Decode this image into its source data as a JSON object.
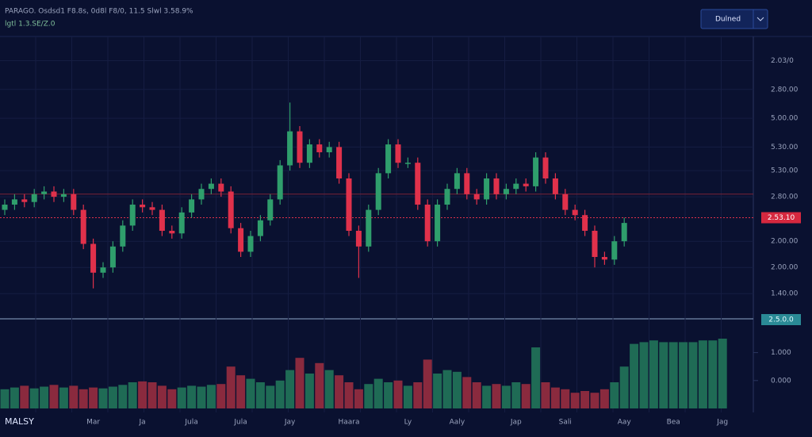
{
  "header": {
    "title": "PARAGO. Osdsd1 F8.8s, 0d8l F8/0, 11.5 Slwl 3.58.9%",
    "subtitle": "lgtl 1.3.SE/Z.0",
    "button": "Dulned"
  },
  "footer": {
    "label": "MALSY"
  },
  "chart_data": {
    "type": "candlestick",
    "up_color": "#2f9e6c",
    "down_color": "#e0314b",
    "categories": [
      null,
      null,
      null,
      null,
      null,
      null,
      null,
      null,
      null,
      "Mar",
      null,
      null,
      null,
      null,
      "Ja",
      null,
      null,
      null,
      null,
      "Jula",
      null,
      null,
      null,
      null,
      "Jula",
      null,
      null,
      null,
      null,
      "Jay",
      null,
      null,
      null,
      null,
      null,
      "Haara",
      null,
      null,
      null,
      null,
      null,
      "Ly",
      null,
      null,
      null,
      null,
      "Aaly",
      null,
      null,
      null,
      null,
      null,
      "Jap",
      null,
      null,
      null,
      null,
      "Sali",
      null,
      null,
      null,
      null,
      null,
      "Aay",
      null,
      null,
      null,
      null,
      "Bea",
      null,
      null,
      null,
      null,
      "Jag"
    ],
    "open": [
      38,
      40,
      42,
      41,
      44,
      45,
      43,
      44,
      38,
      25,
      14,
      16,
      24,
      32,
      40,
      39,
      38,
      30,
      29,
      37,
      42,
      46,
      48,
      45,
      31,
      22,
      28,
      34,
      42,
      55,
      68,
      56,
      63,
      60,
      62,
      50,
      30,
      24,
      38,
      52,
      63,
      56,
      56,
      40,
      26,
      40,
      46,
      52,
      44,
      42,
      50,
      44,
      46,
      48,
      47,
      58,
      50,
      44,
      38,
      36,
      30,
      20,
      19,
      26,
      null,
      null,
      null,
      null,
      null,
      null,
      null,
      null,
      null,
      null
    ],
    "high": [
      42,
      44,
      44,
      46,
      47,
      47,
      46,
      46,
      40,
      27,
      18,
      26,
      34,
      42,
      42,
      41,
      40,
      32,
      39,
      44,
      48,
      50,
      50,
      47,
      33,
      30,
      36,
      44,
      57,
      79,
      70,
      65,
      65,
      64,
      64,
      52,
      32,
      40,
      54,
      65,
      65,
      58,
      58,
      42,
      42,
      48,
      54,
      54,
      46,
      52,
      52,
      48,
      50,
      50,
      60,
      60,
      52,
      46,
      40,
      38,
      32,
      22,
      28,
      35,
      null,
      null,
      null,
      null,
      null,
      null,
      null,
      null,
      null,
      null
    ],
    "low": [
      36,
      38,
      39,
      39,
      42,
      41,
      41,
      36,
      23,
      8,
      12,
      14,
      22,
      30,
      37,
      36,
      28,
      27,
      27,
      35,
      40,
      44,
      43,
      29,
      20,
      20,
      26,
      32,
      40,
      53,
      54,
      54,
      58,
      58,
      48,
      28,
      12,
      22,
      36,
      50,
      54,
      54,
      38,
      24,
      24,
      38,
      44,
      42,
      40,
      40,
      42,
      42,
      44,
      45,
      45,
      48,
      42,
      36,
      34,
      28,
      16,
      17,
      17,
      24,
      null,
      null,
      null,
      null,
      null,
      null,
      null,
      null,
      null,
      null
    ],
    "close": [
      40,
      42,
      41,
      44,
      45,
      43,
      44,
      38,
      25,
      14,
      16,
      24,
      32,
      40,
      39,
      38,
      30,
      29,
      37,
      42,
      46,
      48,
      45,
      31,
      22,
      28,
      34,
      42,
      55,
      68,
      56,
      63,
      60,
      62,
      50,
      30,
      24,
      38,
      52,
      63,
      56,
      56,
      40,
      26,
      40,
      46,
      52,
      44,
      42,
      50,
      44,
      46,
      48,
      47,
      58,
      50,
      44,
      38,
      36,
      30,
      20,
      19,
      26,
      33,
      null,
      null,
      null,
      null,
      null,
      null,
      null,
      null,
      null,
      null
    ],
    "volume": [
      22,
      24,
      26,
      23,
      25,
      27,
      24,
      26,
      22,
      24,
      23,
      25,
      27,
      30,
      31,
      30,
      26,
      22,
      24,
      26,
      25,
      27,
      28,
      48,
      38,
      34,
      30,
      26,
      32,
      44,
      58,
      40,
      52,
      44,
      38,
      30,
      22,
      28,
      34,
      30,
      32,
      26,
      30,
      56,
      40,
      44,
      42,
      36,
      30,
      26,
      28,
      26,
      30,
      28,
      70,
      30,
      24,
      22,
      18,
      20,
      18,
      22,
      30,
      48,
      74,
      76,
      78,
      76,
      76,
      76,
      76,
      78,
      78,
      80
    ],
    "ylim": [
      0,
      100
    ],
    "yticks": [
      {
        "value": 95,
        "label": "2.03/0"
      },
      {
        "value": 84,
        "label": "2.80.00"
      },
      {
        "value": 73,
        "label": "5.00.00"
      },
      {
        "value": 62,
        "label": "5.30.00"
      },
      {
        "value": 53,
        "label": "5.30.00"
      },
      {
        "value": 43,
        "label": "2.80.00"
      },
      {
        "value": 26,
        "label": "2.00.00"
      },
      {
        "value": 16,
        "label": "2.00.00"
      },
      {
        "value": 6,
        "label": "1.40.00"
      }
    ],
    "current_price": {
      "value": 35,
      "label": "2.53.10"
    },
    "reference_line": 44,
    "volume_ylim": [
      0,
      100
    ],
    "volume_yticks": [
      {
        "value": 64,
        "label": "1.000"
      },
      {
        "value": 32,
        "label": "0.000"
      }
    ],
    "volume_marker": {
      "value": 100,
      "label": "2.5.0.0"
    },
    "grid": true
  }
}
